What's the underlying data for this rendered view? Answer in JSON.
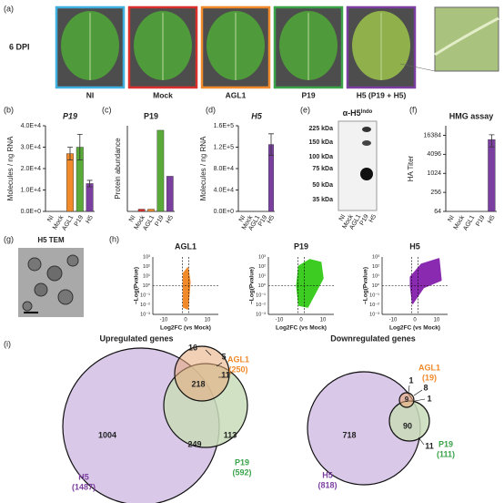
{
  "panel_labels": [
    "(a)",
    "(b)",
    "(c)",
    "(d)",
    "(e)",
    "(f)",
    "(g)",
    "(h)",
    "(i)"
  ],
  "a": {
    "dpi": "6 DPI",
    "leaves": [
      "NI",
      "Mock",
      "AGL1",
      "P19",
      "H5 (P19 + H5)"
    ],
    "colors": [
      "#3fb0e0",
      "#d9302c",
      "#f08a2a",
      "#3aa34a",
      "#7b3fa0"
    ]
  },
  "chart_data": [
    {
      "type": "bar",
      "title": "P19",
      "ylabel": "Molecules / ng RNA",
      "categories": [
        "NI",
        "Mock",
        "AGL1",
        "P19",
        "H5"
      ],
      "values": [
        0,
        0,
        27000,
        30000,
        13000
      ],
      "errors": [
        null,
        null,
        3000,
        6000,
        1500
      ],
      "colors": [
        "#f08a2a",
        "#f08a2a",
        "#f08a2a",
        "#5aaa3a",
        "#7b3fa0"
      ],
      "ylim": [
        0,
        40000
      ],
      "yticks": [
        {
          "value": 0,
          "label": "0.0E+0"
        },
        {
          "value": 10000,
          "label": "1.0E+4"
        },
        {
          "value": 20000,
          "label": "2.0E+4"
        },
        {
          "value": 30000,
          "label": "3.0E+4"
        },
        {
          "value": 40000,
          "label": "4.0E+4"
        }
      ]
    },
    {
      "type": "bar",
      "title": "P19",
      "ylabel": "Protein abundance",
      "categories": [
        "NI",
        "Mock",
        "AGL1",
        "P19",
        "H5"
      ],
      "values": [
        0,
        5,
        5,
        180,
        78
      ],
      "colors": [
        "#d9302c",
        "#d9302c",
        "#f08a2a",
        "#5aaa3a",
        "#7b3fa0"
      ],
      "ylim": [
        0,
        190
      ]
    },
    {
      "type": "bar",
      "title": "H5",
      "ylabel": "Molecules / ng RNA",
      "categories": [
        "NI",
        "Mock",
        "AGL1",
        "P19",
        "H5"
      ],
      "values": [
        0,
        0,
        0,
        0,
        125000
      ],
      "errors": [
        null,
        null,
        null,
        null,
        20000
      ],
      "colors": [
        "#7b3fa0",
        "#7b3fa0",
        "#7b3fa0",
        "#7b3fa0",
        "#7b3fa0"
      ],
      "ylim": [
        0,
        160000
      ],
      "yticks": [
        {
          "value": 0,
          "label": "0.0E+0"
        },
        {
          "value": 40000,
          "label": "4.0E+4"
        },
        {
          "value": 80000,
          "label": "8.0E+4"
        },
        {
          "value": 120000,
          "label": "1.2E+5"
        },
        {
          "value": 160000,
          "label": "1.6E+5"
        }
      ]
    },
    {
      "type": "bar",
      "title": "HMG assay",
      "ylabel": "HA Titer",
      "log": true,
      "categories": [
        "NI",
        "Mock",
        "AGL1",
        "P19",
        "H5"
      ],
      "values": [
        null,
        null,
        null,
        null,
        12000
      ],
      "errors": [
        null,
        null,
        null,
        null,
        5000
      ],
      "colors": [
        null,
        null,
        null,
        null,
        "#7b3fa0"
      ],
      "ylim": [
        64,
        32768
      ],
      "yticks": [
        64,
        256,
        1024,
        4096,
        16384
      ]
    }
  ],
  "e": {
    "title": "α-H5",
    "title_sup": "Indo",
    "markers": [
      "225 kDa",
      "150 kDa",
      "100 kDa",
      "75 kDa",
      "50 kDa",
      "35 kDa"
    ],
    "lanes": [
      "NI",
      "Mock",
      "AGL1",
      "P19",
      "H5"
    ]
  },
  "g": {
    "title": "H5 TEM"
  },
  "h": {
    "titles": [
      "AGL1",
      "P19",
      "H5"
    ],
    "colors": [
      "#f08a2a",
      "#3ccc22",
      "#8a2ab0"
    ],
    "ylabel": "−Log(Pvalue)",
    "xlabel": "Log2FC (vs Mock)",
    "xticks": [
      "-10",
      "0",
      "10"
    ],
    "yticks": [
      "10³",
      "10²",
      "10¹",
      "10⁰",
      "10⁻¹",
      "10⁻²",
      "10⁻³"
    ]
  },
  "i": {
    "up": {
      "title": "Upregulated genes",
      "H5": [
        "H5",
        "(1487)"
      ],
      "AGL1": [
        "AGL1",
        "(250)"
      ],
      "P19": [
        "P19",
        "(592)"
      ],
      "counts": [
        "1004",
        "218",
        "249",
        "113",
        "16",
        "5",
        "11"
      ]
    },
    "down": {
      "title": "Downregulated genes",
      "H5": [
        "H5",
        "(818)"
      ],
      "AGL1": [
        "AGL1",
        "(19)"
      ],
      "P19": [
        "P19",
        "(111)"
      ],
      "counts": [
        "718",
        "9",
        "90",
        "1",
        "8",
        "1",
        "11"
      ]
    }
  }
}
